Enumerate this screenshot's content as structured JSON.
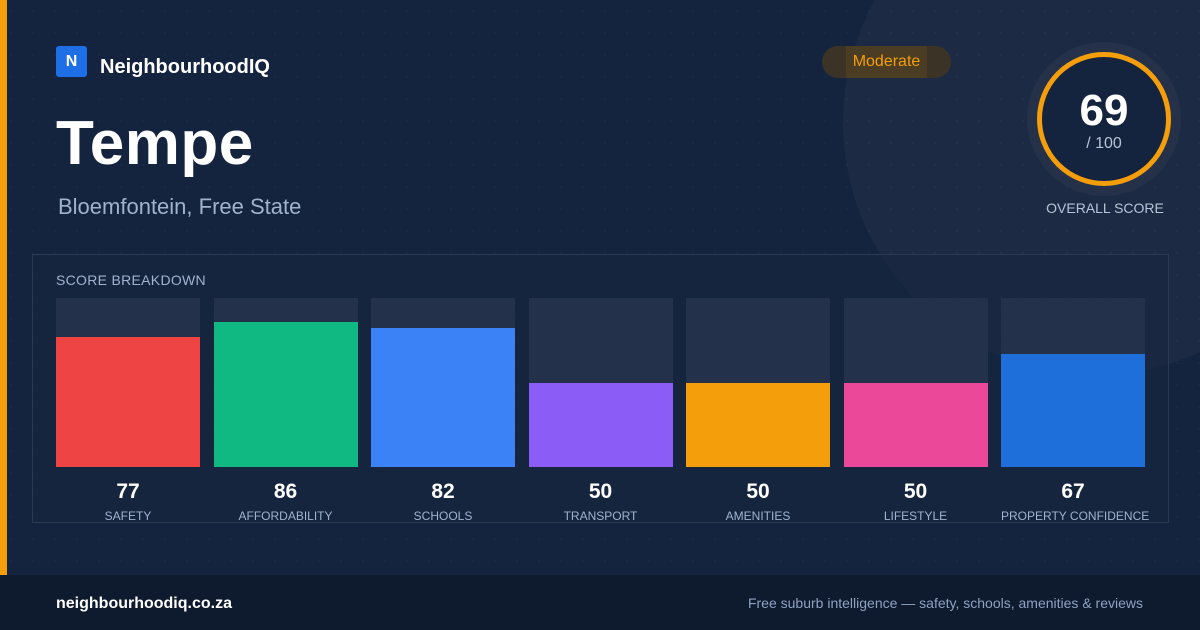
{
  "brand": {
    "logo_letter": "N",
    "name": "NeighbourhoodIQ"
  },
  "suburb": {
    "name": "Tempe",
    "location": "Bloemfontein, Free State"
  },
  "badge": {
    "label": "Moderate",
    "color": "#f59e0b"
  },
  "overall": {
    "value": "69",
    "max": "/ 100",
    "label": "OVERALL SCORE",
    "ring_color": "#f59e0b"
  },
  "breakdown": {
    "title": "SCORE BREAKDOWN",
    "max": 100
  },
  "chart_data": {
    "type": "bar",
    "categories": [
      "SAFETY",
      "AFFORDABILITY",
      "SCHOOLS",
      "TRANSPORT",
      "AMENITIES",
      "LIFESTYLE",
      "PROPERTY CONFIDENCE"
    ],
    "values": [
      77,
      86,
      82,
      50,
      50,
      50,
      67
    ],
    "colors": [
      "#ef4444",
      "#10b981",
      "#3b82f6",
      "#8b5cf6",
      "#f59e0b",
      "#ec4899",
      "#1e6fd9"
    ],
    "ylim": [
      0,
      100
    ],
    "title": "SCORE BREAKDOWN",
    "xlabel": "",
    "ylabel": ""
  },
  "footer": {
    "site": "neighbourhoodiq.co.za",
    "tagline": "Free suburb intelligence — safety, schools, amenities & reviews"
  },
  "colors": {
    "accent": "#f59e0b",
    "background": "#14233e",
    "brand_blue": "#1e6fe6"
  }
}
